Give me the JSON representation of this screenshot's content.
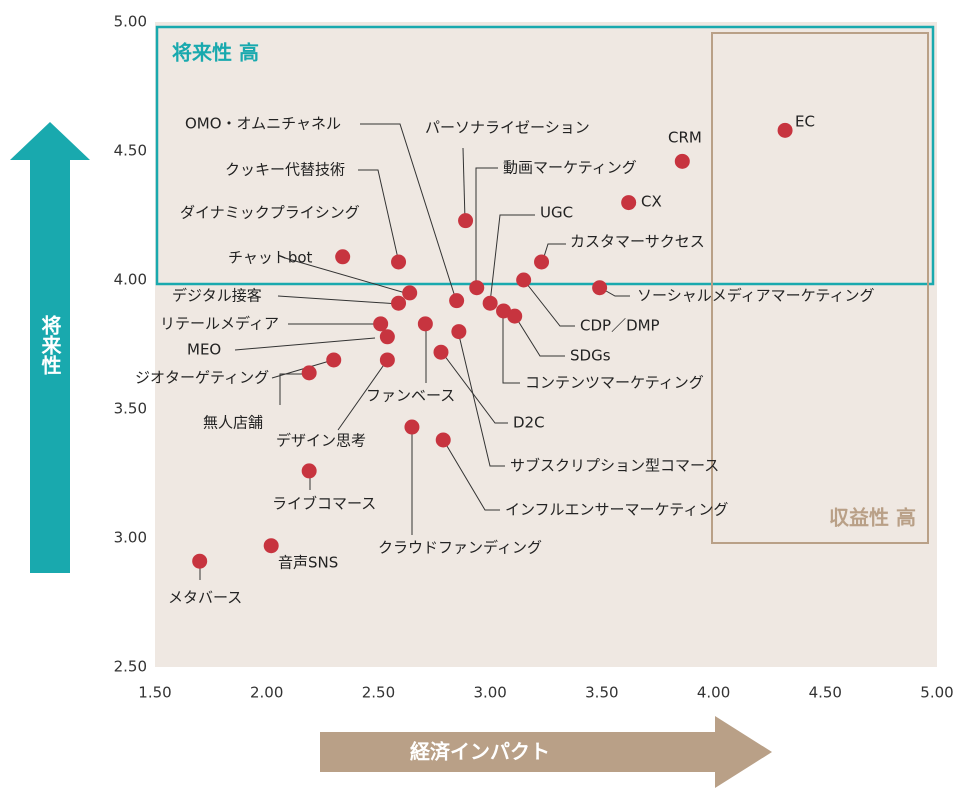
{
  "chart_data": {
    "type": "scatter",
    "xlabel": "経済インパクト",
    "ylabel": "将来性",
    "zones": [
      {
        "label": "将来性 高",
        "color": "#19a9ae"
      },
      {
        "label": "収益性 高",
        "color": "#b9a087"
      }
    ],
    "xlim": [
      1.5,
      5.0
    ],
    "ylim": [
      2.5,
      5.0
    ],
    "xticks": [
      {
        "value": 1.5,
        "label": "1.50"
      },
      {
        "value": 2.0,
        "label": "2.00"
      },
      {
        "value": 2.5,
        "label": "2.50"
      },
      {
        "value": 3.0,
        "label": "3.00"
      },
      {
        "value": 3.5,
        "label": "3.50"
      },
      {
        "value": 4.0,
        "label": "4.00"
      },
      {
        "value": 4.5,
        "label": "4.50"
      },
      {
        "value": 5.0,
        "label": "5.00"
      }
    ],
    "yticks": [
      {
        "value": 2.5,
        "label": "2.50"
      },
      {
        "value": 3.0,
        "label": "3.00"
      },
      {
        "value": 3.5,
        "label": "3.50"
      },
      {
        "value": 4.0,
        "label": "4.00"
      },
      {
        "value": 4.5,
        "label": "4.50"
      },
      {
        "value": 5.0,
        "label": "5.00"
      }
    ],
    "color": "#c7343f",
    "labels": [
      "EC",
      "CRM",
      "CX",
      "カスタマーサクセス",
      "UGC",
      "動画マーケティング",
      "パーソナライゼーション",
      "OMO・オムニチャネル",
      "クッキー代替技術",
      "ダイナミックプライシング",
      "チャットbot",
      "デジタル接客",
      "リテールメディア",
      "MEO",
      "ジオターゲティング",
      "無人店舗",
      "デザイン思考",
      "ファンベース",
      "D2C",
      "サブスクリプション型コマース",
      "インフルエンサーマーケティング",
      "クラウドファンディング",
      "コンテンツマーケティング",
      "SDGs",
      "CDP／DMP",
      "ソーシャルメディアマーケティング",
      "ライブコマース",
      "音声SNS",
      "メタバース"
    ],
    "x": [
      4.32,
      3.86,
      3.62,
      3.23,
      3.0,
      2.94,
      2.89,
      2.85,
      2.59,
      2.34,
      2.64,
      2.59,
      2.51,
      2.54,
      2.3,
      2.19,
      2.54,
      2.71,
      2.78,
      2.86,
      2.79,
      2.65,
      3.06,
      3.11,
      3.15,
      3.49,
      2.19,
      2.02,
      1.7
    ],
    "y": [
      4.58,
      4.46,
      4.3,
      4.07,
      3.91,
      3.97,
      4.23,
      3.92,
      4.07,
      4.09,
      3.95,
      3.91,
      3.83,
      3.78,
      3.69,
      3.64,
      3.69,
      3.83,
      3.72,
      3.8,
      3.38,
      3.43,
      3.88,
      3.86,
      4.0,
      3.97,
      3.26,
      2.97,
      2.91
    ]
  }
}
